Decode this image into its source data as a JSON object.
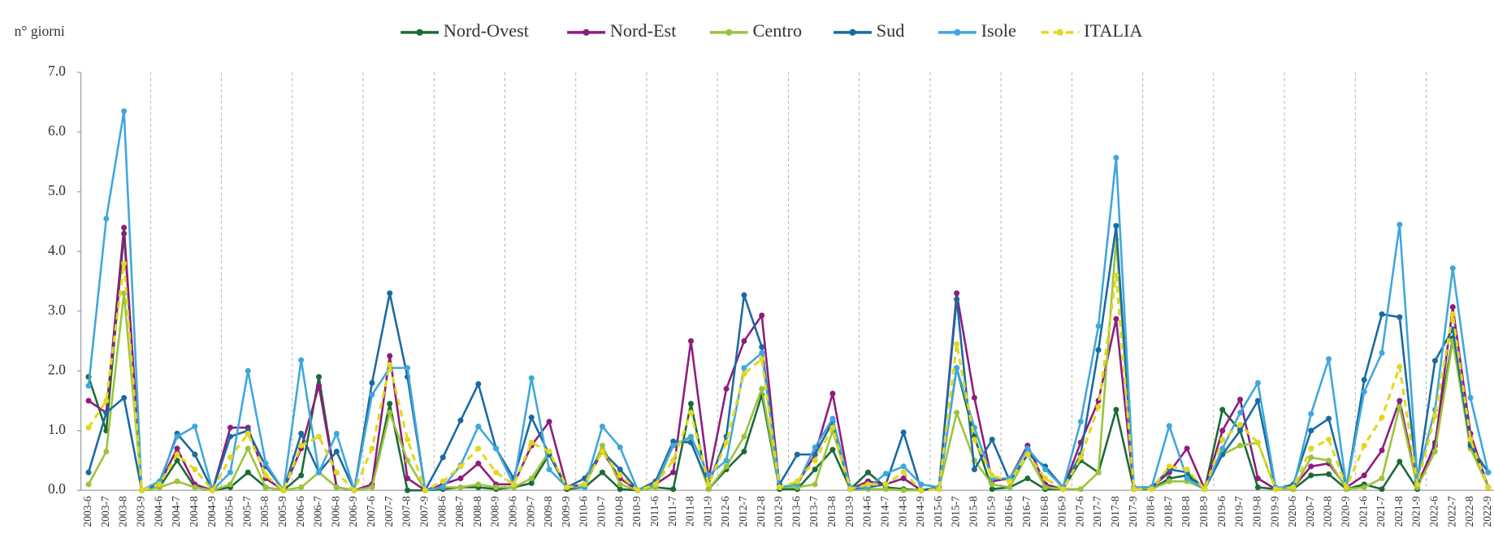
{
  "chart_data": {
    "type": "line",
    "y_axis_label": "n° giorni",
    "categories": [
      "2003-6",
      "2003-7",
      "2003-8",
      "2003-9",
      "2004-6",
      "2004-7",
      "2004-8",
      "2004-9",
      "2005-6",
      "2005-7",
      "2005-8",
      "2005-9",
      "2006-6",
      "2006-7",
      "2006-8",
      "2006-9",
      "2007-6",
      "2007-7",
      "2007-8",
      "2007-9",
      "2008-6",
      "2008-7",
      "2008-8",
      "2008-9",
      "2009-6",
      "2009-7",
      "2009-8",
      "2009-9",
      "2010-6",
      "2010-7",
      "2010-8",
      "2010-9",
      "2011-6",
      "2011-7",
      "2011-8",
      "2011-9",
      "2012-6",
      "2012-7",
      "2012-8",
      "2012-9",
      "2013-6",
      "2013-7",
      "2013-8",
      "2013-9",
      "2014-6",
      "2014-7",
      "2014-8",
      "2014-9",
      "2015-6",
      "2015-7",
      "2015-8",
      "2015-9",
      "2016-6",
      "2016-7",
      "2016-8",
      "2016-9",
      "2017-6",
      "2017-7",
      "2017-8",
      "2017-9",
      "2018-6",
      "2018-7",
      "2018-8",
      "2018-9",
      "2019-6",
      "2019-7",
      "2019-8",
      "2019-9",
      "2020-6",
      "2020-7",
      "2020-8",
      "2020-9",
      "2021-6",
      "2021-7",
      "2021-8",
      "2021-9",
      "2022-6",
      "2022-7",
      "2022-8",
      "2022-9"
    ],
    "series": [
      {
        "name": "Nord-Ovest",
        "color": "#1b6b35",
        "dashed": false,
        "values": [
          1.9,
          1.0,
          4.3,
          0,
          0.05,
          0.5,
          0.05,
          0,
          0.05,
          0.3,
          0.05,
          0,
          0.25,
          1.9,
          0.05,
          0,
          0.05,
          1.45,
          0,
          0,
          0.02,
          0.05,
          0.05,
          0.02,
          0.05,
          0.12,
          0.6,
          0.02,
          0.05,
          0.3,
          0.02,
          0,
          0.05,
          0.02,
          1.45,
          0.02,
          0.35,
          0.65,
          1.6,
          0.02,
          0.02,
          0.35,
          0.68,
          0.02,
          0.3,
          0.05,
          0.02,
          0,
          0.02,
          2.05,
          0.9,
          0.02,
          0.05,
          0.2,
          0.02,
          0.02,
          0.5,
          0.3,
          1.35,
          0.02,
          0.02,
          0.2,
          0.25,
          0.02,
          1.35,
          1.0,
          0.05,
          0.02,
          0.02,
          0.25,
          0.27,
          0.02,
          0.1,
          0.02,
          0.48,
          0.02,
          0.8,
          2.55,
          0.8,
          0.05
        ]
      },
      {
        "name": "Nord-Est",
        "color": "#8e1c7f",
        "dashed": false,
        "values": [
          1.5,
          1.3,
          4.4,
          0,
          0.1,
          0.7,
          0.1,
          0,
          1.05,
          1.05,
          0.2,
          0,
          0.7,
          1.75,
          0.05,
          0,
          0.1,
          2.25,
          0.2,
          0,
          0.1,
          0.2,
          0.45,
          0.1,
          0.1,
          0.75,
          1.15,
          0.05,
          0.1,
          0.65,
          0.2,
          0,
          0.1,
          0.3,
          2.5,
          0.2,
          1.7,
          2.5,
          2.93,
          0.05,
          0.1,
          0.6,
          1.62,
          0.02,
          0.15,
          0.1,
          0.2,
          0,
          0.05,
          3.3,
          1.55,
          0.15,
          0.2,
          0.75,
          0.1,
          0.02,
          0.8,
          1.5,
          2.87,
          0.02,
          0.05,
          0.3,
          0.7,
          0.02,
          1.0,
          1.52,
          0.2,
          0.02,
          0.05,
          0.4,
          0.45,
          0.05,
          0.25,
          0.67,
          1.5,
          0.1,
          0.75,
          3.07,
          0.95,
          0.05
        ]
      },
      {
        "name": "Centro",
        "color": "#9bc43d",
        "dashed": false,
        "values": [
          0.1,
          0.65,
          3.3,
          0,
          0.05,
          0.15,
          0.05,
          0,
          0.1,
          0.7,
          0.05,
          0,
          0.05,
          0.3,
          0.05,
          0,
          0.05,
          1.3,
          0.5,
          0,
          0.05,
          0.05,
          0.1,
          0.05,
          0.05,
          0.2,
          0.65,
          0.05,
          0.05,
          0.75,
          0.1,
          0,
          0.05,
          0.75,
          0.85,
          0.02,
          0.4,
          0.9,
          1.7,
          0.05,
          0.05,
          0.1,
          1.0,
          0.02,
          0.02,
          0.02,
          0,
          0,
          0.02,
          1.3,
          0.5,
          0.1,
          0.05,
          0.6,
          0.05,
          0.02,
          0.02,
          0.3,
          4.2,
          0.05,
          0.02,
          0.15,
          0.15,
          0.02,
          0.6,
          0.75,
          0.8,
          0.02,
          0.02,
          0.55,
          0.5,
          0.02,
          0.05,
          0.2,
          1.4,
          0.05,
          0.65,
          2.5,
          0.7,
          0.05
        ]
      },
      {
        "name": "Sud",
        "color": "#1a6aa2",
        "dashed": false,
        "values": [
          0.3,
          1.3,
          1.55,
          0,
          0.1,
          0.95,
          0.6,
          0,
          0.9,
          1.0,
          0.4,
          0,
          0.95,
          0.3,
          0.65,
          0,
          1.8,
          3.3,
          1.9,
          0,
          0.55,
          1.17,
          1.78,
          0.7,
          0.2,
          1.22,
          0.6,
          0.05,
          0.2,
          0.65,
          0.35,
          0,
          0.15,
          0.82,
          0.8,
          0.1,
          0.9,
          3.27,
          2.4,
          0.1,
          0.6,
          0.6,
          1.15,
          0.02,
          0.05,
          0.1,
          0.97,
          0,
          0.05,
          3.2,
          0.35,
          0.85,
          0.15,
          0.6,
          0.4,
          0.05,
          0.6,
          2.35,
          4.43,
          0.05,
          0.05,
          0.35,
          0.3,
          0.02,
          0.6,
          1.0,
          1.5,
          0.02,
          0.1,
          1.0,
          1.2,
          0.05,
          1.85,
          2.95,
          2.9,
          0.15,
          2.17,
          2.7,
          0.75,
          0.3
        ]
      },
      {
        "name": "Isole",
        "color": "#3fa7dd",
        "dashed": false,
        "values": [
          1.75,
          4.55,
          6.35,
          0,
          0.15,
          0.9,
          1.07,
          0,
          0.3,
          2.0,
          0.45,
          0,
          2.18,
          0.3,
          0.95,
          0,
          1.6,
          2.05,
          2.05,
          0,
          0.05,
          0.42,
          1.07,
          0.7,
          0.1,
          1.88,
          0.35,
          0.05,
          0.05,
          1.07,
          0.72,
          0,
          0.1,
          0.75,
          0.9,
          0.25,
          0.5,
          2.05,
          2.3,
          0.05,
          0.1,
          0.72,
          1.2,
          0.05,
          0.05,
          0.28,
          0.4,
          0.1,
          0.05,
          2.05,
          1.05,
          0.2,
          0.2,
          0.7,
          0.35,
          0.05,
          1.15,
          2.75,
          5.57,
          0.05,
          0.05,
          1.08,
          0.2,
          0.02,
          0.7,
          1.3,
          1.8,
          0.05,
          0.05,
          1.28,
          2.2,
          0.05,
          1.65,
          2.3,
          4.45,
          0.2,
          1.35,
          3.72,
          1.55,
          0.3
        ]
      },
      {
        "name": "ITALIA",
        "color": "#e2d81c",
        "dashed": true,
        "values": [
          1.05,
          1.5,
          3.8,
          0,
          0.1,
          0.6,
          0.35,
          0,
          0.55,
          0.95,
          0.25,
          0,
          0.75,
          0.9,
          0.3,
          0,
          0.7,
          2.1,
          0.85,
          0,
          0.15,
          0.4,
          0.7,
          0.3,
          0.1,
          0.8,
          0.65,
          0.05,
          0.1,
          0.65,
          0.25,
          0,
          0.1,
          0.5,
          1.3,
          0.1,
          0.8,
          1.95,
          2.2,
          0.05,
          0.15,
          0.5,
          1.05,
          0.02,
          0.1,
          0.1,
          0.3,
          0,
          0.02,
          2.45,
          0.85,
          0.25,
          0.15,
          0.6,
          0.2,
          0.02,
          0.55,
          1.4,
          3.6,
          0.02,
          0.02,
          0.4,
          0.35,
          0.02,
          0.85,
          1.1,
          0.8,
          0.02,
          0.05,
          0.7,
          0.85,
          0.05,
          0.75,
          1.22,
          2.07,
          0.1,
          1.25,
          2.95,
          0.85,
          0.05
        ]
      }
    ],
    "ylim": [
      0,
      7
    ],
    "yticks": [
      {
        "value": 0,
        "label": "0.0"
      },
      {
        "value": 1,
        "label": "1.0"
      },
      {
        "value": 2,
        "label": "2.0"
      },
      {
        "value": 3,
        "label": "3.0"
      },
      {
        "value": 4,
        "label": "4.0"
      },
      {
        "value": 5,
        "label": "5.0"
      },
      {
        "value": 6,
        "label": "6.0"
      },
      {
        "value": 7,
        "label": "7.0"
      }
    ],
    "legend": "top"
  }
}
